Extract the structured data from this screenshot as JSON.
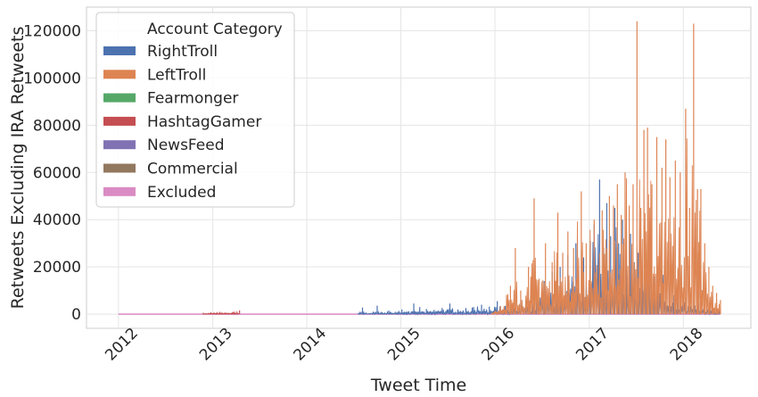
{
  "chart_data": {
    "type": "line",
    "title": "",
    "xlabel": "Tweet Time",
    "ylabel": "Retweets Excluding IRA Retweets",
    "xlim": [
      "2011-08-30",
      "2018-09-20"
    ],
    "ylim": [
      -6000,
      130000
    ],
    "yticks": [
      0,
      20000,
      40000,
      60000,
      80000,
      100000,
      120000
    ],
    "ytick_labels": [
      "0",
      "20000",
      "40000",
      "60000",
      "80000",
      "100000",
      "120000"
    ],
    "xticks": [
      "2012-01-01",
      "2013-01-01",
      "2014-01-01",
      "2015-01-01",
      "2016-01-01",
      "2017-01-01",
      "2018-01-01"
    ],
    "xtick_labels": [
      "2012",
      "2013",
      "2014",
      "2015",
      "2016",
      "2017",
      "2018"
    ],
    "grid": true,
    "legend": {
      "title": "Account Category",
      "placement": "upper-left",
      "entries": [
        "RightTroll",
        "LeftTroll",
        "Fearmonger",
        "HashtagGamer",
        "NewsFeed",
        "Commercial",
        "Excluded"
      ]
    },
    "colors": {
      "RightTroll": "#4c72b0",
      "LeftTroll": "#dd8452",
      "Fearmonger": "#55a868",
      "HashtagGamer": "#c44e52",
      "NewsFeed": "#8172b3",
      "Commercial": "#937860",
      "Excluded": "#da8bc3"
    },
    "series": [
      {
        "name": "RightTroll",
        "points": [
          [
            "2014-07-20",
            300
          ],
          [
            "2014-08-05",
            2800
          ],
          [
            "2014-08-20",
            600
          ],
          [
            "2014-09-10",
            400
          ],
          [
            "2014-10-01",
            3600
          ],
          [
            "2014-10-20",
            800
          ],
          [
            "2014-11-15",
            1500
          ],
          [
            "2014-12-10",
            1000
          ],
          [
            "2015-01-05",
            2000
          ],
          [
            "2015-02-01",
            1200
          ],
          [
            "2015-02-20",
            4500
          ],
          [
            "2015-03-15",
            3000
          ],
          [
            "2015-04-10",
            2200
          ],
          [
            "2015-05-10",
            1800
          ],
          [
            "2015-06-10",
            2600
          ],
          [
            "2015-07-10",
            4500
          ],
          [
            "2015-08-10",
            2000
          ],
          [
            "2015-09-10",
            2600
          ],
          [
            "2015-10-10",
            3000
          ],
          [
            "2015-11-10",
            4000
          ],
          [
            "2015-12-10",
            3200
          ],
          [
            "2016-01-10",
            5500
          ],
          [
            "2016-02-10",
            3500
          ],
          [
            "2016-03-10",
            4000
          ],
          [
            "2016-04-10",
            6000
          ],
          [
            "2016-05-10",
            7000
          ],
          [
            "2016-06-10",
            9000
          ],
          [
            "2016-07-10",
            14000
          ],
          [
            "2016-08-10",
            18000
          ],
          [
            "2016-09-10",
            20000
          ],
          [
            "2016-10-10",
            25000
          ],
          [
            "2016-11-10",
            30000
          ],
          [
            "2016-12-10",
            24000
          ],
          [
            "2017-01-05",
            31000
          ],
          [
            "2017-01-20",
            38000
          ],
          [
            "2017-02-10",
            57000
          ],
          [
            "2017-02-25",
            28000
          ],
          [
            "2017-03-10",
            47000
          ],
          [
            "2017-03-25",
            33000
          ],
          [
            "2017-04-10",
            45000
          ],
          [
            "2017-04-25",
            30000
          ],
          [
            "2017-05-10",
            40000
          ],
          [
            "2017-05-25",
            26000
          ],
          [
            "2017-06-10",
            34000
          ],
          [
            "2017-06-25",
            22000
          ],
          [
            "2017-07-10",
            26000
          ],
          [
            "2017-07-25",
            18000
          ],
          [
            "2017-08-10",
            21000
          ],
          [
            "2017-08-25",
            14000
          ],
          [
            "2017-09-10",
            16000
          ],
          [
            "2017-09-25",
            12000
          ],
          [
            "2017-10-10",
            19000
          ],
          [
            "2017-10-25",
            10000
          ],
          [
            "2017-11-10",
            13000
          ],
          [
            "2017-11-25",
            8000
          ],
          [
            "2017-12-10",
            11000
          ],
          [
            "2018-01-10",
            7000
          ],
          [
            "2018-02-10",
            6000
          ],
          [
            "2018-03-10",
            4000
          ],
          [
            "2018-04-10",
            3000
          ],
          [
            "2018-05-20",
            1500
          ]
        ]
      },
      {
        "name": "LeftTroll",
        "points": [
          [
            "2015-12-20",
            600
          ],
          [
            "2016-02-15",
            8000
          ],
          [
            "2016-03-01",
            12000
          ],
          [
            "2016-03-20",
            28000
          ],
          [
            "2016-04-10",
            10000
          ],
          [
            "2016-05-10",
            20000
          ],
          [
            "2016-06-01",
            49000
          ],
          [
            "2016-06-20",
            15000
          ],
          [
            "2016-07-15",
            30000
          ],
          [
            "2016-08-10",
            22000
          ],
          [
            "2016-09-01",
            43000
          ],
          [
            "2016-09-20",
            26000
          ],
          [
            "2016-10-10",
            35000
          ],
          [
            "2016-11-01",
            28000
          ],
          [
            "2016-12-01",
            52000
          ],
          [
            "2016-12-20",
            30000
          ],
          [
            "2017-01-20",
            40000
          ],
          [
            "2017-02-20",
            44000
          ],
          [
            "2017-03-20",
            50000
          ],
          [
            "2017-04-05",
            46000
          ],
          [
            "2017-04-20",
            55000
          ],
          [
            "2017-05-05",
            42000
          ],
          [
            "2017-05-20",
            60000
          ],
          [
            "2017-06-05",
            46000
          ],
          [
            "2017-06-20",
            55000
          ],
          [
            "2017-07-05",
            124000
          ],
          [
            "2017-07-20",
            45000
          ],
          [
            "2017-08-01",
            78000
          ],
          [
            "2017-08-15",
            79000
          ],
          [
            "2017-09-01",
            55000
          ],
          [
            "2017-09-20",
            75000
          ],
          [
            "2017-10-10",
            62000
          ],
          [
            "2017-10-25",
            74000
          ],
          [
            "2017-11-10",
            58000
          ],
          [
            "2017-12-01",
            65000
          ],
          [
            "2017-12-20",
            60000
          ],
          [
            "2018-01-10",
            87000
          ],
          [
            "2018-01-25",
            45000
          ],
          [
            "2018-02-10",
            123000
          ],
          [
            "2018-02-25",
            53000
          ],
          [
            "2018-03-10",
            53000
          ],
          [
            "2018-03-25",
            30000
          ],
          [
            "2018-04-10",
            20000
          ],
          [
            "2018-04-25",
            12000
          ],
          [
            "2018-05-10",
            9000
          ],
          [
            "2018-05-25",
            6000
          ]
        ]
      },
      {
        "name": "HashtagGamer",
        "points": [
          [
            "2012-11-25",
            600
          ],
          [
            "2013-04-15",
            1600
          ]
        ]
      },
      {
        "name": "Excluded",
        "points": [
          [
            "2012-01-01",
            0
          ],
          [
            "2014-06-01",
            0
          ],
          [
            "2016-01-01",
            0
          ],
          [
            "2018-05-25",
            0
          ]
        ]
      }
    ]
  }
}
